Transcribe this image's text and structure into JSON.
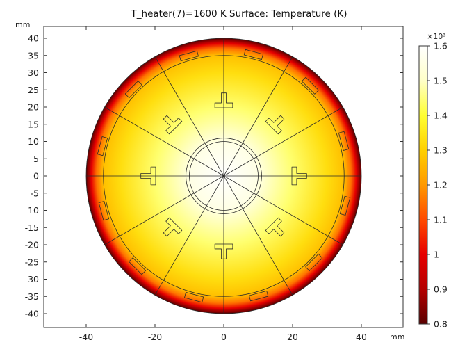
{
  "chart_data": {
    "type": "heatmap",
    "title": "T_heater(7)=1600 K   Surface: Temperature (K)",
    "xlabel": "mm",
    "ylabel": "mm",
    "xlim": [
      -52,
      52
    ],
    "ylim": [
      -42,
      42
    ],
    "x_ticks": [
      -40,
      -20,
      0,
      20,
      40
    ],
    "x_tick_labels": [
      "-40",
      "-20",
      "0",
      "20",
      "40"
    ],
    "y_ticks": [
      40,
      35,
      30,
      25,
      20,
      15,
      10,
      5,
      0,
      -5,
      -10,
      -15,
      -20,
      -25,
      -30,
      -35,
      -40
    ],
    "y_tick_labels": [
      "40",
      "35",
      "30",
      "25",
      "20",
      "15",
      "10",
      "5",
      "0",
      "-5",
      "-10",
      "-15",
      "-20",
      "-25",
      "-30",
      "-35",
      "-40"
    ],
    "field": {
      "name": "Temperature",
      "unit": "K",
      "domain_radius_mm": 40,
      "inner_circle_radii_mm": [
        11,
        10
      ],
      "mid_circle_radius_mm": 35,
      "sector_count": 12,
      "center_temperature_K": 1600,
      "edge_temperature_K": 800,
      "temperature_profile": [
        [
          0,
          1600
        ],
        [
          10,
          1550
        ],
        [
          20,
          1440
        ],
        [
          30,
          1330
        ],
        [
          35,
          1270
        ],
        [
          37,
          1150
        ],
        [
          38.5,
          1000
        ],
        [
          40,
          800
        ]
      ]
    },
    "colorbar": {
      "min": 800,
      "max": 1600,
      "multiplier_label": "×10³",
      "ticks": [
        1.6,
        1.5,
        1.4,
        1.3,
        1.2,
        1.1,
        1,
        0.9,
        0.8
      ],
      "tick_labels": [
        "1.6",
        "1.5",
        "1.4",
        "1.3",
        "1.2",
        "1.1",
        "1",
        "0.9",
        "0.8"
      ],
      "colormap": [
        "#5a0000",
        "#b30000",
        "#e60000",
        "#ff4a00",
        "#ff9900",
        "#ffd000",
        "#ffff33",
        "#ffffc8",
        "#ffffff"
      ]
    }
  }
}
